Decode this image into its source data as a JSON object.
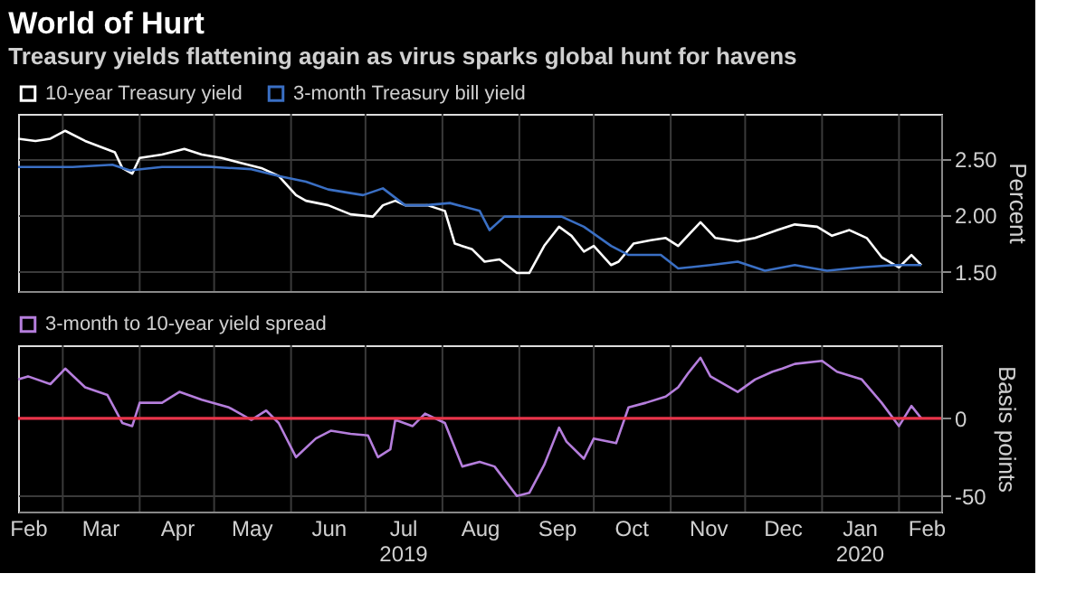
{
  "chart_data": [
    {
      "type": "line",
      "title": "World of Hurt",
      "subtitle": "Treasury yields flattening again as virus sparks global hunt for havens",
      "ylabel": "Percent",
      "legend": "top left",
      "grid": true,
      "tick_labels": "y",
      "line_style": "solid",
      "marker": "none",
      "xlim": [
        "2019-02-11",
        "2020-02-18"
      ],
      "xticks": [
        {
          "value": "2019-03-01",
          "label": null
        },
        {
          "value": "2019-04-01",
          "label": null
        },
        {
          "value": "2019-05-01",
          "label": null
        },
        {
          "value": "2019-06-01",
          "label": null
        },
        {
          "value": "2019-07-01",
          "label": null
        },
        {
          "value": "2019-08-01",
          "label": null
        },
        {
          "value": "2019-09-01",
          "label": null
        },
        {
          "value": "2019-10-01",
          "label": null
        },
        {
          "value": "2019-11-01",
          "label": null
        },
        {
          "value": "2019-12-01",
          "label": null
        },
        {
          "value": "2020-01-01",
          "label": null
        },
        {
          "value": "2020-02-01",
          "label": null
        }
      ],
      "ylim": [
        1.33,
        2.9
      ],
      "yticks": [
        {
          "value": 1.5,
          "label": "1.50"
        },
        {
          "value": 2.0,
          "label": "2.00"
        },
        {
          "value": 2.5,
          "label": "2.50"
        }
      ],
      "series": [
        {
          "name": "10-year Treasury yield",
          "color": "#ffffff",
          "x": [
            "2019-02-11",
            "2019-02-18",
            "2019-02-24",
            "2019-03-02",
            "2019-03-10",
            "2019-03-16",
            "2019-03-22",
            "2019-03-25",
            "2019-03-29",
            "2019-04-01",
            "2019-04-10",
            "2019-04-19",
            "2019-04-26",
            "2019-05-04",
            "2019-05-11",
            "2019-05-20",
            "2019-05-27",
            "2019-06-03",
            "2019-06-07",
            "2019-06-16",
            "2019-06-25",
            "2019-07-04",
            "2019-07-08",
            "2019-07-13",
            "2019-07-17",
            "2019-07-26",
            "2019-08-02",
            "2019-08-06",
            "2019-08-13",
            "2019-08-18",
            "2019-08-24",
            "2019-08-31",
            "2019-09-05",
            "2019-09-11",
            "2019-09-17",
            "2019-09-22",
            "2019-09-27",
            "2019-10-01",
            "2019-10-08",
            "2019-10-11",
            "2019-10-17",
            "2019-10-24",
            "2019-10-30",
            "2019-11-04",
            "2019-11-13",
            "2019-11-19",
            "2019-11-28",
            "2019-12-05",
            "2019-12-14",
            "2019-12-21",
            "2019-12-30",
            "2020-01-05",
            "2020-01-12",
            "2020-01-19",
            "2020-01-25",
            "2020-02-01",
            "2020-02-06",
            "2020-02-10"
          ],
          "values": [
            2.68,
            2.66,
            2.68,
            2.75,
            2.66,
            2.61,
            2.56,
            2.42,
            2.37,
            2.51,
            2.54,
            2.59,
            2.54,
            2.51,
            2.47,
            2.42,
            2.35,
            2.18,
            2.13,
            2.09,
            2.01,
            1.99,
            2.09,
            2.13,
            2.09,
            2.09,
            2.04,
            1.75,
            1.7,
            1.59,
            1.61,
            1.49,
            1.49,
            1.73,
            1.9,
            1.82,
            1.68,
            1.73,
            1.56,
            1.59,
            1.75,
            1.78,
            1.8,
            1.73,
            1.94,
            1.8,
            1.77,
            1.8,
            1.87,
            1.92,
            1.9,
            1.82,
            1.87,
            1.8,
            1.63,
            1.54,
            1.65,
            1.56
          ]
        },
        {
          "name": "3-month Treasury bill yield",
          "color": "#3a6fc4",
          "x": [
            "2019-02-11",
            "2019-03-05",
            "2019-03-21",
            "2019-03-28",
            "2019-04-10",
            "2019-04-30",
            "2019-05-16",
            "2019-05-27",
            "2019-06-07",
            "2019-06-16",
            "2019-06-30",
            "2019-07-08",
            "2019-07-17",
            "2019-07-25",
            "2019-08-04",
            "2019-08-16",
            "2019-08-20",
            "2019-08-26",
            "2019-08-31",
            "2019-09-18",
            "2019-09-27",
            "2019-10-08",
            "2019-10-15",
            "2019-10-28",
            "2019-11-04",
            "2019-11-17",
            "2019-11-28",
            "2019-12-09",
            "2019-12-21",
            "2020-01-03",
            "2020-01-17",
            "2020-01-30",
            "2020-02-10"
          ],
          "values": [
            2.43,
            2.43,
            2.45,
            2.4,
            2.43,
            2.43,
            2.41,
            2.35,
            2.3,
            2.23,
            2.18,
            2.24,
            2.09,
            2.09,
            2.11,
            2.04,
            1.87,
            1.99,
            1.99,
            1.99,
            1.9,
            1.73,
            1.65,
            1.65,
            1.53,
            1.56,
            1.59,
            1.51,
            1.56,
            1.51,
            1.54,
            1.56,
            1.56
          ]
        }
      ]
    },
    {
      "type": "line",
      "ylabel": "Basis points",
      "legend": "top left",
      "grid": true,
      "line_style": "solid",
      "marker": "none",
      "xlim": [
        "2019-02-11",
        "2020-02-18"
      ],
      "xticks": [
        {
          "value": "2019-02-15",
          "label": "Feb"
        },
        {
          "value": "2019-03-01",
          "label": null
        },
        {
          "value": "2019-03-16",
          "label": "Mar"
        },
        {
          "value": "2019-04-01",
          "label": null
        },
        {
          "value": "2019-04-16",
          "label": "Apr"
        },
        {
          "value": "2019-05-01",
          "label": null
        },
        {
          "value": "2019-05-16",
          "label": "May"
        },
        {
          "value": "2019-06-01",
          "label": null
        },
        {
          "value": "2019-06-16",
          "label": "Jun"
        },
        {
          "value": "2019-07-01",
          "label": null
        },
        {
          "value": "2019-07-16",
          "label": "Jul\n2019"
        },
        {
          "value": "2019-08-01",
          "label": null
        },
        {
          "value": "2019-08-16",
          "label": "Aug"
        },
        {
          "value": "2019-09-01",
          "label": null
        },
        {
          "value": "2019-09-16",
          "label": "Sep"
        },
        {
          "value": "2019-10-01",
          "label": null
        },
        {
          "value": "2019-10-16",
          "label": "Oct"
        },
        {
          "value": "2019-11-01",
          "label": null
        },
        {
          "value": "2019-11-16",
          "label": "Nov"
        },
        {
          "value": "2019-12-01",
          "label": null
        },
        {
          "value": "2019-12-16",
          "label": "Dec"
        },
        {
          "value": "2020-01-01",
          "label": null
        },
        {
          "value": "2020-01-16",
          "label": "Jan\n2020"
        },
        {
          "value": "2020-02-01",
          "label": null
        },
        {
          "value": "2020-02-12",
          "label": "Feb"
        }
      ],
      "ylim": [
        -60,
        47
      ],
      "yticks": [
        -50,
        0
      ],
      "ref_lines": [
        {
          "axis": "y",
          "value": 0,
          "color": "#e8344a"
        }
      ],
      "series": [
        {
          "name": "3-month to 10-year yield spread",
          "color": "#b57edc",
          "x": [
            "2019-02-11",
            "2019-02-15",
            "2019-02-24",
            "2019-03-02",
            "2019-03-10",
            "2019-03-19",
            "2019-03-25",
            "2019-03-29",
            "2019-04-01",
            "2019-04-10",
            "2019-04-17",
            "2019-04-26",
            "2019-05-07",
            "2019-05-16",
            "2019-05-22",
            "2019-05-27",
            "2019-06-03",
            "2019-06-11",
            "2019-06-17",
            "2019-06-25",
            "2019-07-02",
            "2019-07-06",
            "2019-07-11",
            "2019-07-13",
            "2019-07-20",
            "2019-07-25",
            "2019-08-02",
            "2019-08-09",
            "2019-08-16",
            "2019-08-22",
            "2019-08-31",
            "2019-09-05",
            "2019-09-11",
            "2019-09-17",
            "2019-09-20",
            "2019-09-27",
            "2019-10-01",
            "2019-10-10",
            "2019-10-15",
            "2019-10-22",
            "2019-10-30",
            "2019-11-04",
            "2019-11-08",
            "2019-11-13",
            "2019-11-17",
            "2019-11-28",
            "2019-12-05",
            "2019-12-12",
            "2019-12-16",
            "2019-12-21",
            "2020-01-01",
            "2020-01-07",
            "2020-01-17",
            "2020-01-25",
            "2020-02-01",
            "2020-02-06",
            "2020-02-10"
          ],
          "values": [
            25,
            27,
            22,
            32,
            20,
            15,
            -3,
            -5,
            10,
            10,
            17,
            12,
            7,
            -1,
            5,
            -3,
            -25,
            -13,
            -8,
            -10,
            -11,
            -25,
            -20,
            -1,
            -5,
            3,
            -3,
            -31,
            -28,
            -31,
            -50,
            -48,
            -30,
            -6,
            -15,
            -26,
            -13,
            -16,
            7,
            10,
            14,
            20,
            29,
            39,
            27,
            17,
            25,
            30,
            32,
            35,
            37,
            30,
            25,
            10,
            -5,
            8,
            0
          ]
        }
      ]
    }
  ]
}
